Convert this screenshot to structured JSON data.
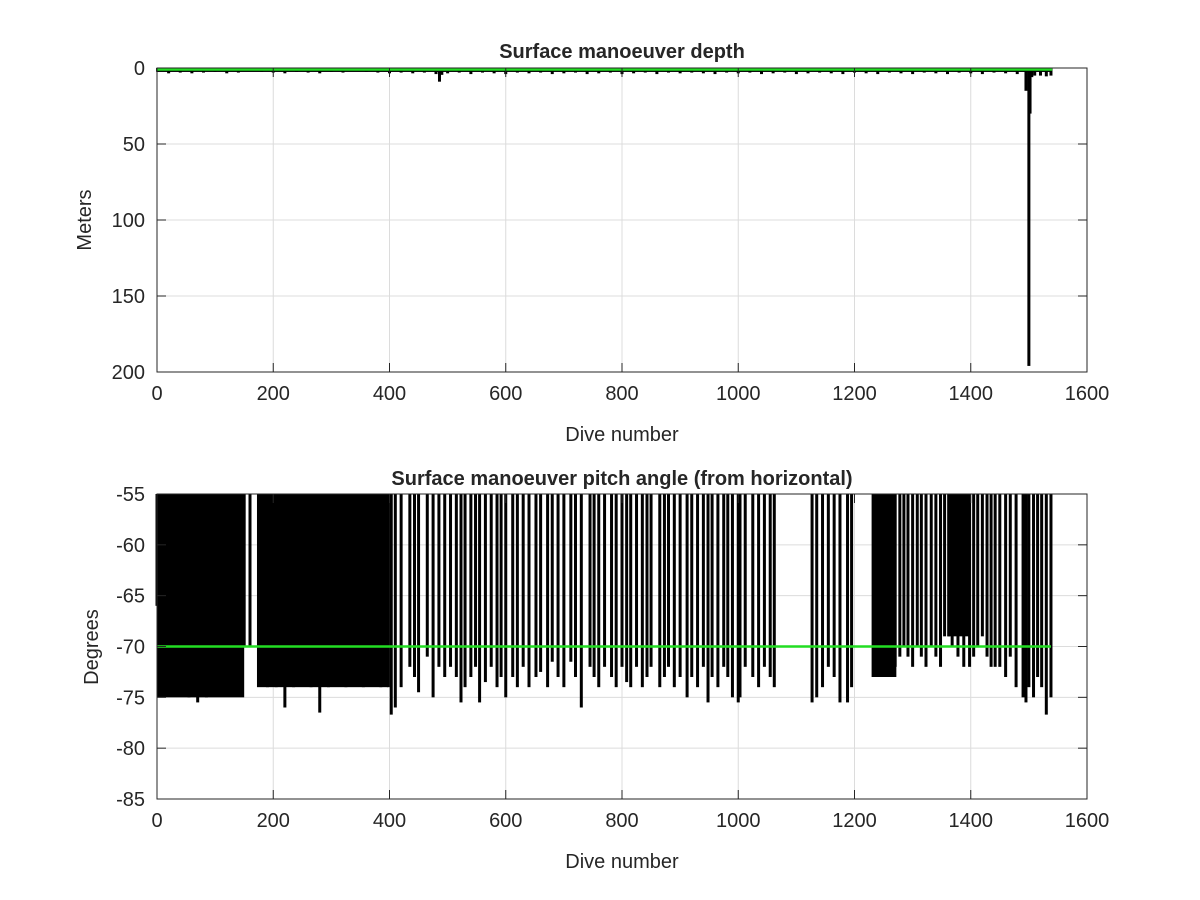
{
  "chart_data": [
    {
      "type": "bar",
      "title": "Surface manoeuver depth",
      "xlabel": "Dive number",
      "ylabel": "Meters",
      "xlim": [
        0,
        1600
      ],
      "ylim": [
        0,
        200
      ],
      "y_reversed": true,
      "xticks": [
        "0",
        "200",
        "400",
        "600",
        "800",
        "1000",
        "1200",
        "1400",
        "1600"
      ],
      "yticks": [
        "0",
        "50",
        "100",
        "150",
        "200"
      ],
      "grid": true,
      "series_color": "#000000",
      "reference_line": {
        "value": 1,
        "color": "#22dd22"
      },
      "x": [
        1,
        20,
        40,
        60,
        80,
        100,
        120,
        140,
        160,
        180,
        200,
        220,
        240,
        260,
        280,
        300,
        320,
        340,
        360,
        380,
        400,
        420,
        440,
        460,
        480,
        486,
        490,
        500,
        520,
        540,
        560,
        580,
        600,
        620,
        640,
        660,
        680,
        700,
        720,
        740,
        760,
        780,
        800,
        820,
        840,
        860,
        880,
        900,
        920,
        940,
        960,
        980,
        1000,
        1020,
        1040,
        1060,
        1080,
        1100,
        1120,
        1140,
        1160,
        1180,
        1200,
        1220,
        1240,
        1260,
        1280,
        1300,
        1320,
        1340,
        1360,
        1380,
        1400,
        1420,
        1440,
        1460,
        1480,
        1495,
        1500,
        1502,
        1505,
        1510,
        1520,
        1530,
        1538
      ],
      "values": [
        2.5,
        3.5,
        3.0,
        3.5,
        3.0,
        2.5,
        3.5,
        3.0,
        2.0,
        2.5,
        3.0,
        3.5,
        2.5,
        3.0,
        3.5,
        2.5,
        3.0,
        2.0,
        2.5,
        3.0,
        3.5,
        3.0,
        3.5,
        3.0,
        4.0,
        9.0,
        4.5,
        3.5,
        3.0,
        4.0,
        3.0,
        3.5,
        4.0,
        3.0,
        3.5,
        3.0,
        4.0,
        3.5,
        3.0,
        4.0,
        3.5,
        3.0,
        4.0,
        3.5,
        3.0,
        4.0,
        3.0,
        3.5,
        3.0,
        3.5,
        4.0,
        3.0,
        3.5,
        3.0,
        4.0,
        3.5,
        3.0,
        4.0,
        3.5,
        3.0,
        3.5,
        4.0,
        3.0,
        3.5,
        4.0,
        3.0,
        3.5,
        4.0,
        3.0,
        3.5,
        4.0,
        3.0,
        3.5,
        4.0,
        3.0,
        3.5,
        4.0,
        15.0,
        196.0,
        30.0,
        6.0,
        5.0,
        5.0,
        5.5,
        5.0
      ]
    },
    {
      "type": "bar",
      "title": "Surface manoeuver pitch angle (from horizontal)",
      "xlabel": "Dive number",
      "ylabel": "Degrees",
      "xlim": [
        0,
        1600
      ],
      "ylim": [
        -85,
        -55
      ],
      "xticks": [
        "0",
        "200",
        "400",
        "600",
        "800",
        "1000",
        "1200",
        "1400",
        "1600"
      ],
      "yticks": [
        "-55",
        "-60",
        "-65",
        "-70",
        "-75",
        "-80",
        "-85"
      ],
      "grid": true,
      "series_color": "#000000",
      "reference_line": {
        "value": -70,
        "color": "#22dd22"
      },
      "solid_blocks": [
        {
          "x_start": 2,
          "x_end": 150,
          "bottom": -75
        },
        {
          "x_start": 172,
          "x_end": 398,
          "bottom": -74
        },
        {
          "x_start": 1232,
          "x_end": 1272,
          "bottom": -73
        },
        {
          "x_start": 1360,
          "x_end": 1398,
          "bottom": -69
        }
      ],
      "x": [
        0,
        2,
        10,
        25,
        40,
        55,
        70,
        85,
        100,
        115,
        130,
        145,
        150,
        160,
        175,
        190,
        205,
        220,
        235,
        250,
        265,
        280,
        295,
        310,
        325,
        340,
        355,
        370,
        385,
        398,
        403,
        410,
        420,
        435,
        443,
        450,
        465,
        475,
        485,
        495,
        505,
        515,
        523,
        530,
        540,
        548,
        555,
        565,
        575,
        585,
        592,
        600,
        612,
        620,
        630,
        640,
        652,
        660,
        672,
        680,
        690,
        700,
        712,
        720,
        730,
        745,
        752,
        760,
        770,
        782,
        790,
        800,
        808,
        815,
        825,
        835,
        843,
        850,
        865,
        873,
        880,
        890,
        900,
        912,
        920,
        930,
        940,
        948,
        955,
        965,
        975,
        982,
        990,
        1000,
        1003,
        1012,
        1025,
        1035,
        1045,
        1055,
        1062,
        1127,
        1135,
        1145,
        1155,
        1165,
        1175,
        1188,
        1195,
        1232,
        1240,
        1250,
        1260,
        1270,
        1278,
        1285,
        1292,
        1300,
        1308,
        1315,
        1323,
        1332,
        1340,
        1348,
        1355,
        1362,
        1368,
        1378,
        1388,
        1398,
        1405,
        1412,
        1420,
        1428,
        1435,
        1442,
        1450,
        1460,
        1468,
        1478,
        1490,
        1495,
        1500,
        1508,
        1515,
        1522,
        1530,
        1538
      ],
      "values": [
        -66,
        -75,
        -73,
        -74,
        -74,
        -75,
        -75.5,
        -75,
        -74,
        -73,
        -73,
        -73,
        -70,
        -70,
        -73.5,
        -74,
        -74,
        -76,
        -74,
        -73,
        -74,
        -76.5,
        -74,
        -73,
        -74,
        -73.5,
        -74,
        -73,
        -74,
        -74,
        -76.7,
        -76,
        -74,
        -72,
        -73,
        -74.5,
        -71,
        -75,
        -72,
        -73,
        -72,
        -73,
        -75.5,
        -74,
        -73,
        -72,
        -75.5,
        -73.5,
        -72,
        -74,
        -73,
        -75,
        -73,
        -74,
        -72,
        -74,
        -73,
        -72.5,
        -74,
        -71.5,
        -73,
        -74,
        -71.5,
        -73,
        -76,
        -72,
        -73,
        -74,
        -72,
        -73,
        -74,
        -72,
        -73.5,
        -74,
        -72,
        -74,
        -73,
        -72,
        -74,
        -73,
        -72,
        -74,
        -73,
        -75,
        -73,
        -74,
        -72,
        -75.5,
        -73,
        -74,
        -72,
        -73,
        -75,
        -75.5,
        -75,
        -72,
        -73,
        -74,
        -72,
        -73,
        -74,
        -75.5,
        -75,
        -74,
        -72,
        -73,
        -75.5,
        -75.5,
        -74,
        -73,
        -72,
        -73,
        -71,
        -72,
        -71,
        -70,
        -71,
        -72,
        -70,
        -71,
        -72,
        -70,
        -71,
        -72,
        -69,
        -69,
        -70,
        -71,
        -72,
        -72,
        -71,
        -70,
        -69,
        -71,
        -72,
        -72,
        -72,
        -73,
        -71,
        -74,
        -75,
        -75.5,
        -74,
        -75,
        -73,
        -74,
        -76.7,
        -75
      ]
    }
  ]
}
